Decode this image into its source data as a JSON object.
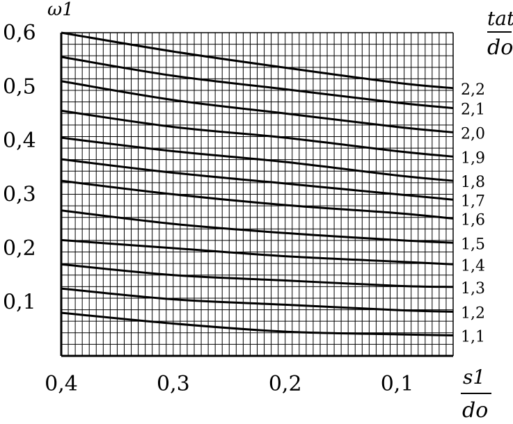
{
  "chart_data": {
    "type": "line",
    "title": "",
    "xlabel": {
      "numerator": "s1",
      "denominator": "do"
    },
    "ylabel": "ω1",
    "legend_title": {
      "numerator": "tat",
      "denominator": "do"
    },
    "x_reversed": true,
    "xlim": [
      0.4,
      0.05
    ],
    "ylim": [
      0.0,
      0.6
    ],
    "x_ticks": [
      {
        "value": 0.4,
        "label": "0,4"
      },
      {
        "value": 0.3,
        "label": "0,3"
      },
      {
        "value": 0.2,
        "label": "0,2"
      },
      {
        "value": 0.1,
        "label": "0,1"
      }
    ],
    "y_ticks": [
      {
        "value": 0.6,
        "label": "0,6"
      },
      {
        "value": 0.5,
        "label": "0,5"
      },
      {
        "value": 0.4,
        "label": "0,4"
      },
      {
        "value": 0.3,
        "label": "0,3"
      },
      {
        "value": 0.2,
        "label": "0,2"
      },
      {
        "value": 0.1,
        "label": "0,1"
      }
    ],
    "grid": true,
    "x": [
      0.4,
      0.3,
      0.2,
      0.1,
      0.05
    ],
    "series": [
      {
        "name": "2,2",
        "values": [
          0.6,
          0.565,
          0.535,
          0.507,
          0.497
        ]
      },
      {
        "name": "2,1",
        "values": [
          0.555,
          0.52,
          0.495,
          0.47,
          0.46
        ]
      },
      {
        "name": "2,0",
        "values": [
          0.51,
          0.475,
          0.45,
          0.425,
          0.415
        ]
      },
      {
        "name": "1,9",
        "values": [
          0.455,
          0.425,
          0.405,
          0.38,
          0.37
        ]
      },
      {
        "name": "1,8",
        "values": [
          0.405,
          0.38,
          0.36,
          0.335,
          0.325
        ]
      },
      {
        "name": "1,7",
        "values": [
          0.365,
          0.34,
          0.32,
          0.3,
          0.29
        ]
      },
      {
        "name": "1,6",
        "values": [
          0.325,
          0.3,
          0.28,
          0.265,
          0.255
        ]
      },
      {
        "name": "1,5",
        "values": [
          0.27,
          0.245,
          0.228,
          0.215,
          0.21
        ]
      },
      {
        "name": "1,4",
        "values": [
          0.215,
          0.2,
          0.185,
          0.175,
          0.17
        ]
      },
      {
        "name": "1,3",
        "values": [
          0.17,
          0.15,
          0.14,
          0.13,
          0.128
        ]
      },
      {
        "name": "1,2",
        "values": [
          0.125,
          0.105,
          0.095,
          0.085,
          0.082
        ]
      },
      {
        "name": "1,1",
        "values": [
          0.08,
          0.06,
          0.045,
          0.04,
          0.038
        ]
      }
    ]
  }
}
